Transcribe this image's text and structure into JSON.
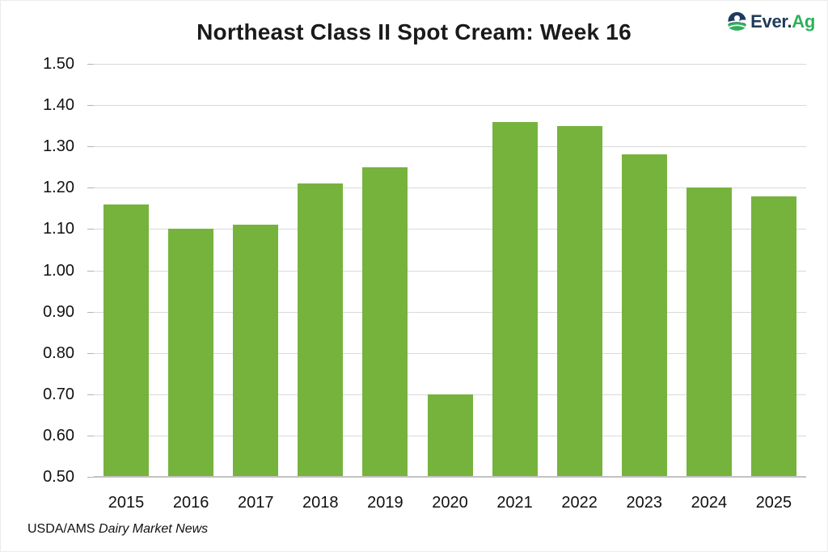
{
  "page": {
    "background": "#ffffff",
    "border_color": "#ececec"
  },
  "header": {
    "title": "Northeast Class II Spot Cream: Week 16"
  },
  "logo": {
    "icon": "ever-ag-globe-e-icon",
    "text_primary": "Ever.",
    "text_accent": "Ag",
    "primary_color": "#1f3a5a",
    "accent_color": "#2fb05c"
  },
  "footer": {
    "source_prefix": "USDA/AMS ",
    "source_publication": "Dairy Market News"
  },
  "chart_data": {
    "type": "bar",
    "title": "Northeast Class II Spot Cream: Week 16",
    "categories": [
      "2015",
      "2016",
      "2017",
      "2018",
      "2019",
      "2020",
      "2021",
      "2022",
      "2023",
      "2024",
      "2025"
    ],
    "values": [
      1.16,
      1.1,
      1.11,
      1.21,
      1.25,
      0.7,
      1.36,
      1.35,
      1.28,
      1.2,
      1.18
    ],
    "xlabel": "",
    "ylabel": "",
    "ylim": [
      0.5,
      1.5
    ],
    "ytick_step": 0.1,
    "ytick_labels": [
      "0.50",
      "0.60",
      "0.70",
      "0.80",
      "0.90",
      "1.00",
      "1.10",
      "1.20",
      "1.30",
      "1.40",
      "1.50"
    ],
    "grid": true,
    "legend": "none",
    "bar_color": "#76b33d",
    "gridline_color": "#d9d9d9",
    "axis_line_color": "#c2c2c2",
    "tick_color": "#b3b3b3",
    "label_color": "#111111"
  }
}
